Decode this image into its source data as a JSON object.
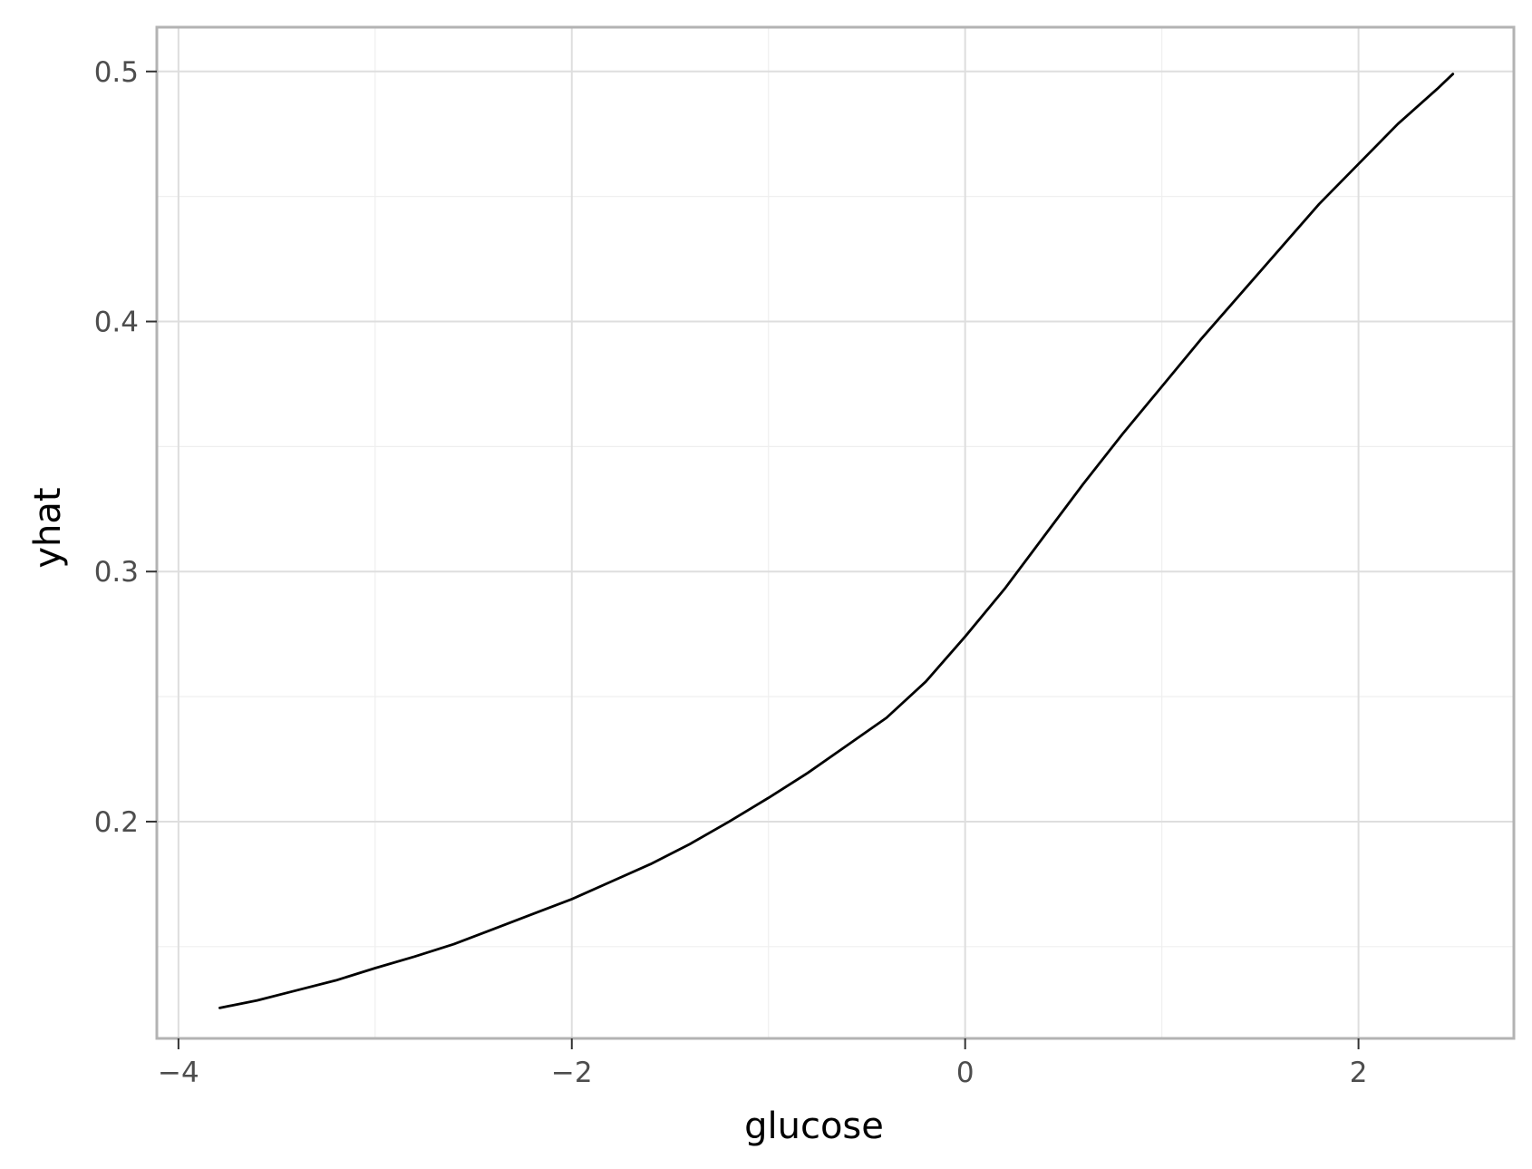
{
  "chart_data": {
    "type": "line",
    "title": "",
    "xlabel": "glucose",
    "ylabel": "yhat",
    "xlim": [
      -4.11,
      2.79
    ],
    "ylim": [
      0.1133,
      0.5177
    ],
    "x_ticks": [
      -4,
      -2,
      0,
      2
    ],
    "x_tick_labels": [
      "−4",
      "−2",
      "0",
      "2"
    ],
    "y_ticks": [
      0.2,
      0.3,
      0.4,
      0.5
    ],
    "y_tick_labels": [
      "0.2",
      "0.3",
      "0.4",
      "0.5"
    ],
    "x_minor_ticks": [
      -3,
      -1,
      1
    ],
    "y_minor_ticks": [
      0.15,
      0.25,
      0.35,
      0.45
    ],
    "grid": true,
    "legend": "none",
    "colors": {
      "line": "#000000",
      "major_grid": "#dedede",
      "minor_grid": "#efefef",
      "panel_border": "#b3b3b3",
      "tick_text": "#4d4d4d"
    },
    "series": [
      {
        "values": [
          {
            "x": -3.79,
            "y": 0.1255
          },
          {
            "x": -3.6,
            "y": 0.1285
          },
          {
            "x": -3.4,
            "y": 0.1325
          },
          {
            "x": -3.2,
            "y": 0.1365
          },
          {
            "x": -3.0,
            "y": 0.1414
          },
          {
            "x": -2.8,
            "y": 0.146
          },
          {
            "x": -2.6,
            "y": 0.151
          },
          {
            "x": -2.4,
            "y": 0.157
          },
          {
            "x": -2.2,
            "y": 0.163
          },
          {
            "x": -2.0,
            "y": 0.169
          },
          {
            "x": -1.8,
            "y": 0.176
          },
          {
            "x": -1.6,
            "y": 0.183
          },
          {
            "x": -1.4,
            "y": 0.191
          },
          {
            "x": -1.2,
            "y": 0.2
          },
          {
            "x": -1.0,
            "y": 0.2095
          },
          {
            "x": -0.8,
            "y": 0.2195
          },
          {
            "x": -0.6,
            "y": 0.2305
          },
          {
            "x": -0.4,
            "y": 0.2415
          },
          {
            "x": -0.2,
            "y": 0.256
          },
          {
            "x": 0.0,
            "y": 0.274
          },
          {
            "x": 0.2,
            "y": 0.293
          },
          {
            "x": 0.4,
            "y": 0.314
          },
          {
            "x": 0.6,
            "y": 0.335
          },
          {
            "x": 0.8,
            "y": 0.355
          },
          {
            "x": 1.0,
            "y": 0.374
          },
          {
            "x": 1.2,
            "y": 0.393
          },
          {
            "x": 1.4,
            "y": 0.411
          },
          {
            "x": 1.6,
            "y": 0.429
          },
          {
            "x": 1.8,
            "y": 0.447
          },
          {
            "x": 2.0,
            "y": 0.463
          },
          {
            "x": 2.2,
            "y": 0.479
          },
          {
            "x": 2.4,
            "y": 0.493
          },
          {
            "x": 2.48,
            "y": 0.499
          }
        ]
      }
    ]
  }
}
